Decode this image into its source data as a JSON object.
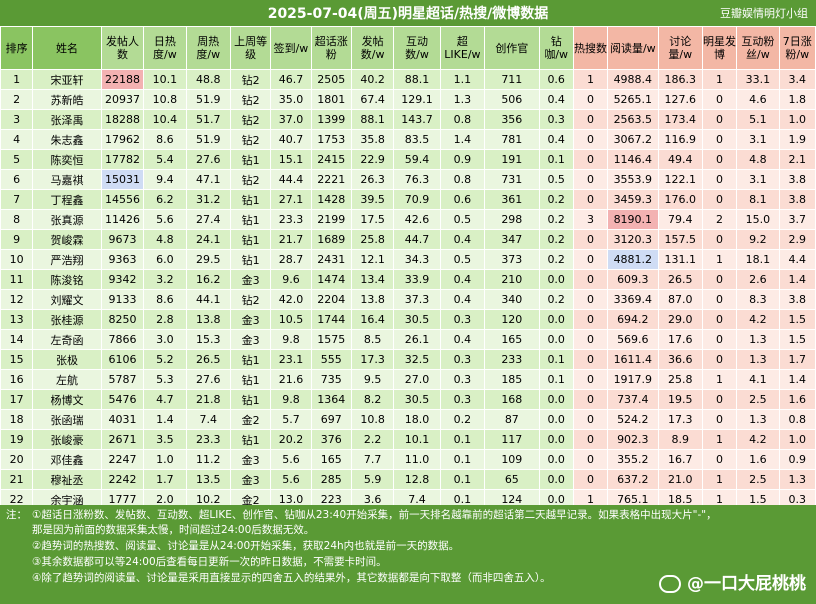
{
  "title": "2025-07-04(周五)明星超话/热搜/微博数据",
  "credit": "豆瓣娱情明灯小组",
  "headers": [
    "排序",
    "姓名",
    "发帖人数",
    "日热度/w",
    "周热度/w",
    "上周等级",
    "签到/w",
    "超话涨粉",
    "发帖数/w",
    "互动数/w",
    "超LIKE/w",
    "创作官",
    "钻咖/w",
    "热搜数",
    "阅读量/w",
    "讨论量/w",
    "明星发博",
    "互动粉丝/w",
    "7日涨粉/w"
  ],
  "rows": [
    [
      "1",
      "宋亚轩",
      "22188",
      "10.1",
      "48.8",
      "钻2",
      "46.7",
      "2505",
      "40.2",
      "88.1",
      "1.1",
      "711",
      "0.6",
      "1",
      "4988.4",
      "186.3",
      "1",
      "33.1",
      "3.4"
    ],
    [
      "2",
      "苏新皓",
      "20937",
      "10.8",
      "51.9",
      "钻2",
      "35.0",
      "1801",
      "67.4",
      "129.1",
      "1.3",
      "506",
      "0.4",
      "0",
      "5265.1",
      "127.6",
      "0",
      "4.6",
      "1.8"
    ],
    [
      "3",
      "张泽禹",
      "18288",
      "10.4",
      "51.7",
      "钻2",
      "37.0",
      "1399",
      "88.1",
      "143.7",
      "0.8",
      "356",
      "0.3",
      "0",
      "2563.5",
      "173.4",
      "0",
      "5.1",
      "1.0"
    ],
    [
      "4",
      "朱志鑫",
      "17962",
      "8.6",
      "51.9",
      "钻2",
      "40.7",
      "1753",
      "35.8",
      "83.5",
      "1.4",
      "781",
      "0.4",
      "0",
      "3067.2",
      "116.9",
      "0",
      "3.1",
      "1.9"
    ],
    [
      "5",
      "陈奕恒",
      "17782",
      "5.4",
      "27.6",
      "钻1",
      "15.1",
      "2415",
      "22.9",
      "59.4",
      "0.9",
      "191",
      "0.1",
      "0",
      "1146.4",
      "49.4",
      "0",
      "4.8",
      "2.1"
    ],
    [
      "6",
      "马嘉祺",
      "15031",
      "9.4",
      "47.1",
      "钻2",
      "44.4",
      "2221",
      "26.3",
      "76.3",
      "0.8",
      "731",
      "0.5",
      "0",
      "3553.9",
      "122.1",
      "0",
      "3.1",
      "3.8"
    ],
    [
      "7",
      "丁程鑫",
      "14556",
      "6.2",
      "31.2",
      "钻1",
      "27.1",
      "1428",
      "39.5",
      "70.9",
      "0.6",
      "361",
      "0.2",
      "0",
      "3459.3",
      "176.0",
      "0",
      "8.1",
      "3.8"
    ],
    [
      "8",
      "张真源",
      "11426",
      "5.6",
      "27.4",
      "钻1",
      "23.3",
      "2199",
      "17.5",
      "42.6",
      "0.5",
      "298",
      "0.2",
      "3",
      "8190.1",
      "79.4",
      "2",
      "15.0",
      "3.7"
    ],
    [
      "9",
      "贺峻霖",
      "9673",
      "4.8",
      "24.1",
      "钻1",
      "21.7",
      "1689",
      "25.8",
      "44.7",
      "0.4",
      "347",
      "0.2",
      "0",
      "3120.3",
      "157.5",
      "0",
      "9.2",
      "2.9"
    ],
    [
      "10",
      "严浩翔",
      "9363",
      "6.0",
      "29.5",
      "钻1",
      "28.7",
      "2431",
      "12.1",
      "34.3",
      "0.5",
      "373",
      "0.2",
      "0",
      "4881.2",
      "131.1",
      "1",
      "18.1",
      "4.4"
    ],
    [
      "11",
      "陈浚铭",
      "9342",
      "3.2",
      "16.2",
      "金3",
      "9.6",
      "1474",
      "13.4",
      "33.9",
      "0.4",
      "210",
      "0.0",
      "0",
      "609.3",
      "26.5",
      "0",
      "2.6",
      "1.4"
    ],
    [
      "12",
      "刘耀文",
      "9133",
      "8.6",
      "44.1",
      "钻2",
      "42.0",
      "2204",
      "13.8",
      "37.3",
      "0.4",
      "340",
      "0.2",
      "0",
      "3369.4",
      "87.0",
      "0",
      "8.3",
      "3.8"
    ],
    [
      "13",
      "张桂源",
      "8250",
      "2.8",
      "13.8",
      "金3",
      "10.5",
      "1744",
      "16.4",
      "30.5",
      "0.3",
      "120",
      "0.0",
      "0",
      "694.2",
      "29.0",
      "0",
      "4.2",
      "1.5"
    ],
    [
      "14",
      "左奇函",
      "7866",
      "3.0",
      "15.3",
      "金3",
      "9.8",
      "1575",
      "8.5",
      "26.1",
      "0.4",
      "165",
      "0.0",
      "0",
      "569.6",
      "17.6",
      "0",
      "1.3",
      "1.5"
    ],
    [
      "15",
      "张极",
      "6106",
      "5.2",
      "26.5",
      "钻1",
      "23.1",
      "555",
      "17.3",
      "32.5",
      "0.3",
      "233",
      "0.1",
      "0",
      "1611.4",
      "36.6",
      "0",
      "1.3",
      "1.7"
    ],
    [
      "16",
      "左航",
      "5787",
      "5.3",
      "27.6",
      "钻1",
      "21.6",
      "735",
      "9.5",
      "27.0",
      "0.3",
      "185",
      "0.1",
      "0",
      "1917.9",
      "25.8",
      "1",
      "4.1",
      "1.4"
    ],
    [
      "17",
      "杨博文",
      "5476",
      "4.7",
      "21.8",
      "钻1",
      "9.8",
      "1364",
      "8.2",
      "30.5",
      "0.3",
      "168",
      "0.0",
      "0",
      "737.4",
      "19.5",
      "0",
      "2.5",
      "1.6"
    ],
    [
      "18",
      "张函瑞",
      "4031",
      "1.4",
      "7.4",
      "金2",
      "5.7",
      "697",
      "10.8",
      "18.0",
      "0.2",
      "87",
      "0.0",
      "0",
      "524.2",
      "17.3",
      "0",
      "1.3",
      "0.8"
    ],
    [
      "19",
      "张峻豪",
      "2671",
      "3.5",
      "23.3",
      "钻1",
      "20.2",
      "376",
      "2.2",
      "10.1",
      "0.1",
      "117",
      "0.0",
      "0",
      "902.3",
      "8.9",
      "1",
      "4.2",
      "1.0"
    ],
    [
      "20",
      "邓佳鑫",
      "2247",
      "1.0",
      "11.2",
      "金3",
      "5.6",
      "165",
      "7.7",
      "11.0",
      "0.1",
      "109",
      "0.0",
      "0",
      "355.2",
      "16.7",
      "0",
      "1.6",
      "0.9"
    ],
    [
      "21",
      "穆祉丞",
      "2242",
      "1.7",
      "13.5",
      "金3",
      "5.6",
      "285",
      "5.9",
      "12.8",
      "0.1",
      "65",
      "0.0",
      "0",
      "637.2",
      "21.0",
      "1",
      "2.5",
      "1.3"
    ],
    [
      "22",
      "余宇涵",
      "1777",
      "2.0",
      "10.2",
      "金2",
      "13.0",
      "223",
      "3.6",
      "7.4",
      "0.1",
      "124",
      "0.0",
      "1",
      "765.1",
      "18.5",
      "1",
      "1.5",
      "0.3"
    ]
  ],
  "footer": {
    "label": "注：",
    "note1": "①超话日涨粉数、发帖数、互动数、超LIKE、创作官、钻咖从23:40开始采集，前一天排名越靠前的超话第二天越早记录。如果表格中出现大片\"-\"，",
    "note1b": "那是因为前面的数据采集太慢，时间超过24:00后数据无效。",
    "note2": "②趋势词的热搜数、阅读量、讨论量是从24:00开始采集，获取24h内也就是前一天的数据。",
    "note3": "③其余数据都可以等24:00后查看每日更新一次的昨日数据，不需要卡时间。",
    "note4": "④除了趋势词的阅读量、讨论量是采用直接显示的四舍五入的结果外，其它数据都是向下取整（而非四舍五入）。",
    "watermark": "@一口大屁桃桃"
  },
  "colors": {
    "header_green": "#5a9a35",
    "zone_a": "#d9f0c5",
    "zone_b": "#fbdcd3",
    "red_text": "#cc2222",
    "blue_text": "#3060b0"
  },
  "highlights": {
    "red": [
      [
        0,
        2
      ],
      [
        0,
        6
      ],
      [
        5,
        6
      ],
      [
        7,
        6
      ],
      [
        8,
        6
      ],
      [
        9,
        6
      ],
      [
        11,
        2
      ],
      [
        11,
        6
      ],
      [
        17,
        2
      ],
      [
        7,
        14
      ],
      [
        20,
        14
      ],
      [
        8,
        15
      ]
    ],
    "blue": [
      [
        3,
        3
      ],
      [
        5,
        2
      ],
      [
        6,
        6
      ],
      [
        18,
        3
      ],
      [
        19,
        3
      ],
      [
        20,
        3
      ],
      [
        19,
        6
      ],
      [
        9,
        14
      ],
      [
        1,
        15
      ]
    ],
    "red_bg": [
      [
        0,
        2
      ],
      [
        7,
        14
      ]
    ],
    "blue_bg": [
      [
        5,
        2
      ],
      [
        9,
        14
      ]
    ]
  }
}
